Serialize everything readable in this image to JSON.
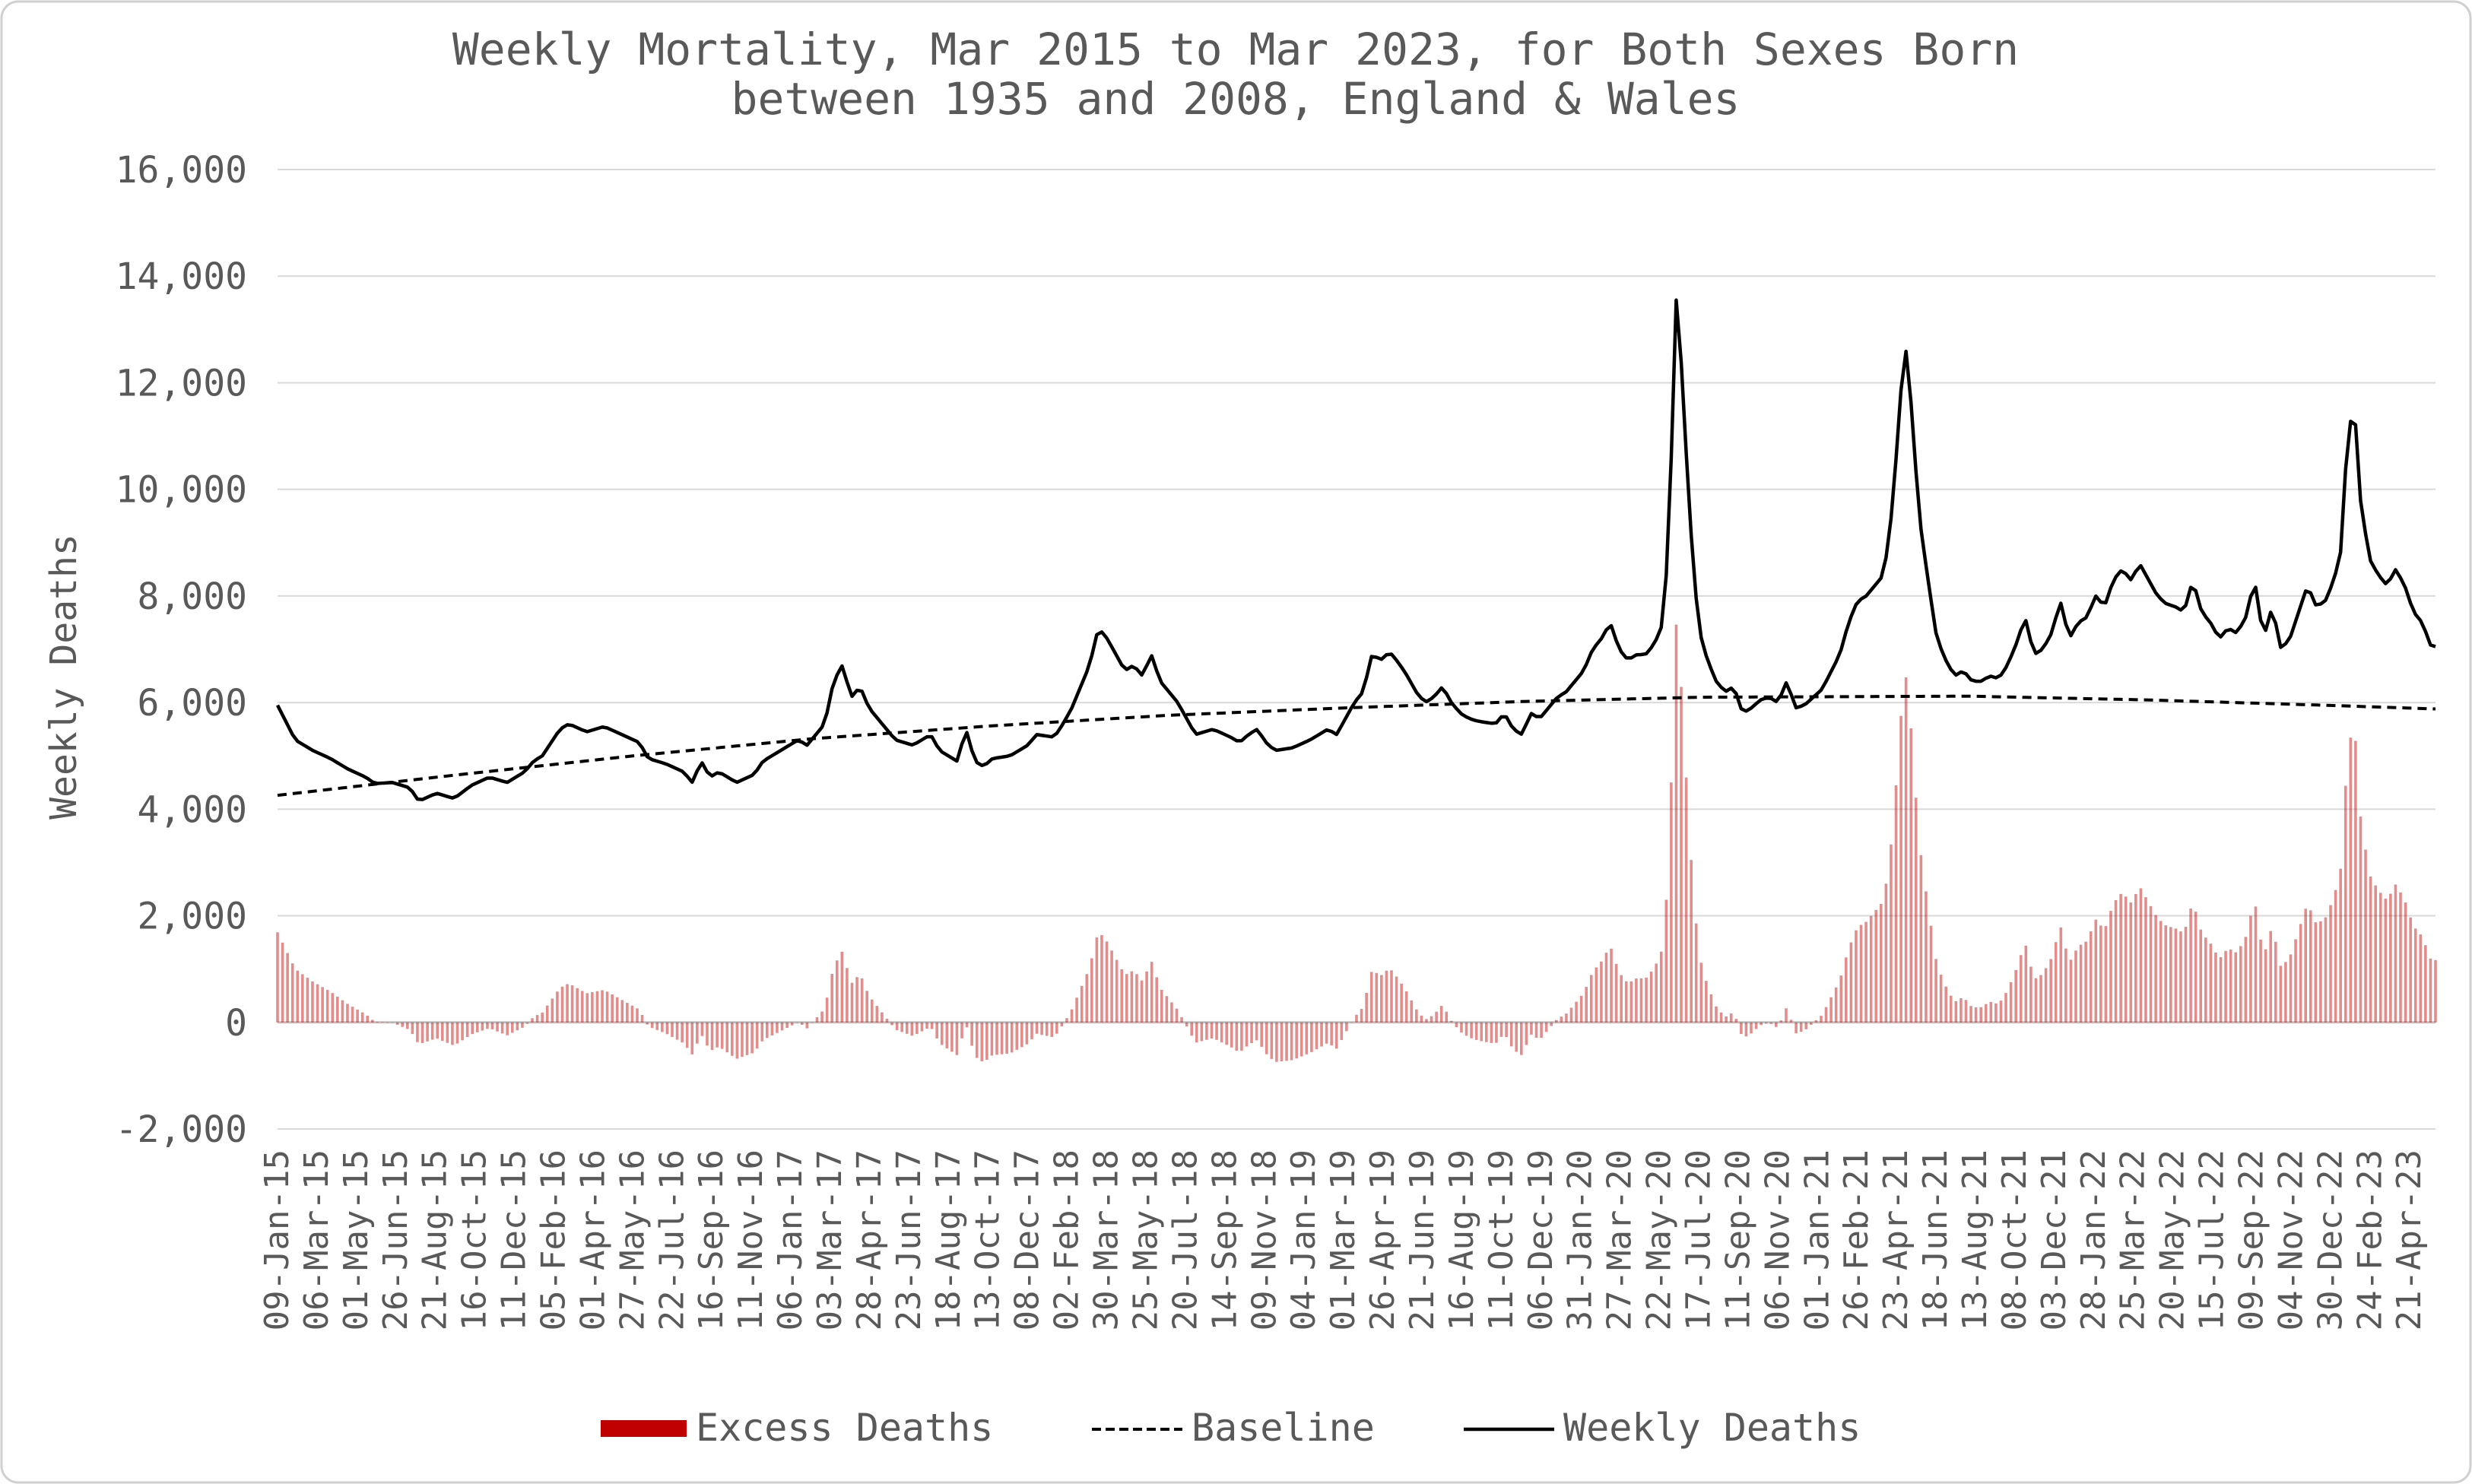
{
  "chart_data": {
    "type": "bar+line",
    "title_line1": "Weekly Mortality, Mar 2015 to Mar 2023, for Both Sexes Born",
    "title_line2": "between 1935 and 2008, England & Wales",
    "ylabel": "Weekly Deaths",
    "xlabel": "",
    "ylim": [
      -2000,
      16000
    ],
    "yticks": [
      16000,
      14000,
      12000,
      10000,
      8000,
      6000,
      4000,
      2000,
      0,
      -2000
    ],
    "ytick_labels": [
      "16,000",
      "14,000",
      "12,000",
      "10,000",
      "8,000",
      "6,000",
      "4,000",
      "2,000",
      "0",
      "-2,000"
    ],
    "grid": true,
    "legend_position": "bottom",
    "x_start": "09-Jan-15",
    "weeks": 433,
    "xtick_labels": [
      "09-Jan-15",
      "06-Mar-15",
      "01-May-15",
      "26-Jun-15",
      "21-Aug-15",
      "16-Oct-15",
      "11-Dec-15",
      "05-Feb-16",
      "01-Apr-16",
      "27-May-16",
      "22-Jul-16",
      "16-Sep-16",
      "11-Nov-16",
      "06-Jan-17",
      "03-Mar-17",
      "28-Apr-17",
      "23-Jun-17",
      "18-Aug-17",
      "13-Oct-17",
      "08-Dec-17",
      "02-Feb-18",
      "30-Mar-18",
      "25-May-18",
      "20-Jul-18",
      "14-Sep-18",
      "09-Nov-18",
      "04-Jan-19",
      "01-Mar-19",
      "26-Apr-19",
      "21-Jun-19",
      "16-Aug-19",
      "11-Oct-19",
      "06-Dec-19",
      "31-Jan-20",
      "27-Mar-20",
      "22-May-20",
      "17-Jul-20",
      "11-Sep-20",
      "06-Nov-20",
      "01-Jan-21",
      "26-Feb-21",
      "23-Apr-21",
      "18-Jun-21",
      "13-Aug-21",
      "08-Oct-21",
      "03-Dec-21",
      "28-Jan-22",
      "25-Mar-22",
      "20-May-22",
      "15-Jul-22",
      "09-Sep-22",
      "04-Nov-22",
      "30-Dec-22",
      "24-Feb-23",
      "21-Apr-23"
    ],
    "series": [
      {
        "name": "Excess Deaths",
        "kind": "bar",
        "color": "#c00000",
        "derived": "Weekly Deaths minus Baseline"
      },
      {
        "name": "Baseline",
        "kind": "line",
        "style": "dashed",
        "color": "#000000",
        "anchors": [
          [
            0,
            4260
          ],
          [
            40,
            4640
          ],
          [
            80,
            5000
          ],
          [
            120,
            5320
          ],
          [
            160,
            5560
          ],
          [
            200,
            5760
          ],
          [
            240,
            5900
          ],
          [
            280,
            6020
          ],
          [
            320,
            6100
          ],
          [
            380,
            6120
          ],
          [
            420,
            6050
          ],
          [
            460,
            5950
          ],
          [
            485,
            5880
          ]
        ]
      },
      {
        "name": "Weekly Deaths",
        "kind": "line",
        "style": "solid",
        "color": "#000000",
        "anchors": [
          [
            0,
            5950
          ],
          [
            4,
            5300
          ],
          [
            8,
            5100
          ],
          [
            12,
            4950
          ],
          [
            16,
            4750
          ],
          [
            20,
            4600
          ],
          [
            22,
            4480
          ],
          [
            26,
            4500
          ],
          [
            30,
            4400
          ],
          [
            32,
            4150
          ],
          [
            36,
            4300
          ],
          [
            40,
            4200
          ],
          [
            44,
            4450
          ],
          [
            48,
            4600
          ],
          [
            52,
            4500
          ],
          [
            56,
            4700
          ],
          [
            58,
            4900
          ],
          [
            60,
            5000
          ],
          [
            64,
            5500
          ],
          [
            66,
            5600
          ],
          [
            70,
            5450
          ],
          [
            74,
            5550
          ],
          [
            78,
            5400
          ],
          [
            82,
            5250
          ],
          [
            84,
            4950
          ],
          [
            88,
            4850
          ],
          [
            92,
            4700
          ],
          [
            94,
            4500
          ],
          [
            96,
            4900
          ],
          [
            98,
            4600
          ],
          [
            100,
            4700
          ],
          [
            104,
            4500
          ],
          [
            108,
            4650
          ],
          [
            110,
            4900
          ],
          [
            114,
            5100
          ],
          [
            118,
            5300
          ],
          [
            120,
            5200
          ],
          [
            124,
            5600
          ],
          [
            126,
            6400
          ],
          [
            128,
            6700
          ],
          [
            130,
            6100
          ],
          [
            132,
            6300
          ],
          [
            134,
            5900
          ],
          [
            138,
            5500
          ],
          [
            140,
            5300
          ],
          [
            144,
            5200
          ],
          [
            148,
            5400
          ],
          [
            150,
            5100
          ],
          [
            154,
            4900
          ],
          [
            156,
            5500
          ],
          [
            158,
            4900
          ],
          [
            160,
            4800
          ],
          [
            162,
            4950
          ],
          [
            166,
            5000
          ],
          [
            170,
            5200
          ],
          [
            172,
            5400
          ],
          [
            176,
            5350
          ],
          [
            178,
            5600
          ],
          [
            180,
            5900
          ],
          [
            182,
            6300
          ],
          [
            184,
            6700
          ],
          [
            186,
            7400
          ],
          [
            188,
            7200
          ],
          [
            190,
            6900
          ],
          [
            192,
            6600
          ],
          [
            194,
            6700
          ],
          [
            196,
            6500
          ],
          [
            198,
            6900
          ],
          [
            200,
            6400
          ],
          [
            204,
            6000
          ],
          [
            206,
            5700
          ],
          [
            208,
            5400
          ],
          [
            212,
            5500
          ],
          [
            216,
            5350
          ],
          [
            218,
            5250
          ],
          [
            220,
            5400
          ],
          [
            222,
            5500
          ],
          [
            224,
            5250
          ],
          [
            226,
            5100
          ],
          [
            230,
            5150
          ],
          [
            234,
            5300
          ],
          [
            238,
            5500
          ],
          [
            240,
            5400
          ],
          [
            242,
            5700
          ],
          [
            244,
            6000
          ],
          [
            246,
            6200
          ],
          [
            248,
            6900
          ],
          [
            250,
            6800
          ],
          [
            252,
            6950
          ],
          [
            254,
            6750
          ],
          [
            256,
            6500
          ],
          [
            258,
            6200
          ],
          [
            260,
            6000
          ],
          [
            262,
            6100
          ],
          [
            264,
            6300
          ],
          [
            266,
            6000
          ],
          [
            268,
            5800
          ],
          [
            270,
            5700
          ],
          [
            272,
            5650
          ],
          [
            276,
            5600
          ],
          [
            278,
            5800
          ],
          [
            280,
            5500
          ],
          [
            282,
            5400
          ],
          [
            284,
            5800
          ],
          [
            286,
            5700
          ],
          [
            288,
            5900
          ],
          [
            290,
            6100
          ],
          [
            292,
            6200
          ],
          [
            294,
            6400
          ],
          [
            296,
            6600
          ],
          [
            298,
            7000
          ],
          [
            300,
            7200
          ],
          [
            302,
            7500
          ],
          [
            304,
            7000
          ],
          [
            306,
            6800
          ],
          [
            308,
            6900
          ],
          [
            310,
            6900
          ],
          [
            312,
            7100
          ],
          [
            314,
            7500
          ],
          [
            315,
            8800
          ],
          [
            316,
            11000
          ],
          [
            317,
            13700
          ],
          [
            318,
            12500
          ],
          [
            320,
            9500
          ],
          [
            322,
            7400
          ],
          [
            324,
            6800
          ],
          [
            326,
            6400
          ],
          [
            328,
            6200
          ],
          [
            330,
            6300
          ],
          [
            332,
            5800
          ],
          [
            334,
            5900
          ],
          [
            336,
            6050
          ],
          [
            338,
            6100
          ],
          [
            340,
            6000
          ],
          [
            342,
            6400
          ],
          [
            344,
            5900
          ],
          [
            346,
            5950
          ],
          [
            350,
            6250
          ],
          [
            354,
            6900
          ],
          [
            356,
            7500
          ],
          [
            358,
            7900
          ],
          [
            360,
            8000
          ],
          [
            362,
            8200
          ],
          [
            364,
            8400
          ],
          [
            366,
            9700
          ],
          [
            368,
            12000
          ],
          [
            369,
            12600
          ],
          [
            370,
            11800
          ],
          [
            372,
            9500
          ],
          [
            374,
            8300
          ],
          [
            376,
            7200
          ],
          [
            378,
            6800
          ],
          [
            380,
            6500
          ],
          [
            382,
            6600
          ],
          [
            384,
            6400
          ],
          [
            386,
            6400
          ],
          [
            388,
            6500
          ],
          [
            390,
            6450
          ],
          [
            392,
            6700
          ],
          [
            394,
            7100
          ],
          [
            396,
            7600
          ],
          [
            398,
            6900
          ],
          [
            400,
            7000
          ],
          [
            402,
            7300
          ],
          [
            404,
            7900
          ],
          [
            406,
            7200
          ],
          [
            408,
            7500
          ],
          [
            410,
            7600
          ],
          [
            412,
            8000
          ],
          [
            414,
            7800
          ],
          [
            416,
            8300
          ],
          [
            418,
            8500
          ],
          [
            420,
            8300
          ],
          [
            422,
            8600
          ],
          [
            424,
            8300
          ],
          [
            426,
            8000
          ],
          [
            428,
            7850
          ],
          [
            430,
            7800
          ],
          [
            432,
            7700
          ],
          [
            434,
            8300
          ],
          [
            436,
            7700
          ],
          [
            438,
            7500
          ],
          [
            440,
            7200
          ],
          [
            442,
            7400
          ],
          [
            444,
            7300
          ],
          [
            446,
            7600
          ],
          [
            448,
            8300
          ],
          [
            450,
            7200
          ],
          [
            452,
            7800
          ],
          [
            454,
            7000
          ],
          [
            456,
            7200
          ],
          [
            458,
            7700
          ],
          [
            460,
            8200
          ],
          [
            462,
            7800
          ],
          [
            464,
            7900
          ],
          [
            466,
            8300
          ],
          [
            468,
            9000
          ],
          [
            469,
            11200
          ],
          [
            470,
            11300
          ],
          [
            471,
            11200
          ],
          [
            472,
            9800
          ],
          [
            474,
            8700
          ],
          [
            476,
            8400
          ],
          [
            478,
            8200
          ],
          [
            480,
            8500
          ],
          [
            482,
            8200
          ],
          [
            484,
            7700
          ],
          [
            486,
            7500
          ],
          [
            488,
            7050
          ],
          [
            489,
            7050
          ]
        ]
      }
    ]
  },
  "legend": {
    "excess": "Excess Deaths",
    "baseline": "Baseline",
    "weekly": "Weekly Deaths"
  },
  "colors": {
    "excess": "#c00000",
    "line": "#000000",
    "grid": "#d9d9d9",
    "text": "#595959"
  }
}
